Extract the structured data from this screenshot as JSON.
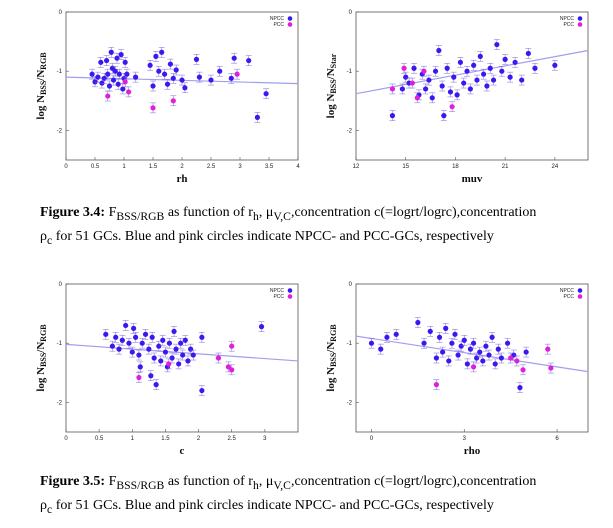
{
  "colors": {
    "npcc": "#3b18f0",
    "pcc": "#e01ee0",
    "fit": "#9f9ff0",
    "error": "#7a6bd6"
  },
  "legend": {
    "npcc": "NPCC",
    "pcc": "PCC"
  },
  "captions": [
    {
      "label": "Figure 3.4:",
      "line1": " F<sub>BSS/RGB</sub> as function of r<sub>h</sub>, μ<sub>V,C</sub>,concentration c(=logrt/logrc),concentration",
      "line2": "ρ<sub>c</sub> for 51 GCs. Blue and pink circles indicate NPCC- and PCC-GCs, respectively"
    },
    {
      "label": "Figure 3.5:",
      "line1": " F<sub>BSS/RGB</sub> as function of r<sub>h</sub>, μ<sub>V,C</sub>,concentration c(=logrt/logrc),concentration",
      "line2": "ρ<sub>c</sub> for 51 GCs. Blue and pink circles indicate NPCC- and PCC-GCs, respectively"
    }
  ],
  "chart_data": [
    {
      "type": "scatter",
      "xlabel": "rh",
      "ylabel": "log N<sub>BSS</sub>/N<sub>RGB</sub>",
      "xlim": [
        0,
        4
      ],
      "ylim": [
        -2.5,
        0
      ],
      "xticks": [
        "0",
        "0.5",
        "1",
        "1.5",
        "2",
        "2.5",
        "3",
        "3.5",
        "4"
      ],
      "xtickvals": [
        0,
        0.5,
        1,
        1.5,
        2,
        2.5,
        3,
        3.5,
        4
      ],
      "yticks": [
        "0",
        "-1",
        "-2"
      ],
      "ytickvals": [
        0,
        -1,
        -2
      ],
      "fit": [
        [
          0,
          -1.1
        ],
        [
          4,
          -1.21
        ]
      ],
      "npcc": [
        [
          0.45,
          -1.05
        ],
        [
          0.5,
          -1.18
        ],
        [
          0.55,
          -1.1
        ],
        [
          0.6,
          -0.85
        ],
        [
          0.62,
          -1.2
        ],
        [
          0.66,
          -1.12
        ],
        [
          0.7,
          -0.82
        ],
        [
          0.72,
          -1.05
        ],
        [
          0.75,
          -1.25
        ],
        [
          0.78,
          -0.68
        ],
        [
          0.8,
          -0.95
        ],
        [
          0.82,
          -1.15
        ],
        [
          0.85,
          -1.0
        ],
        [
          0.88,
          -0.78
        ],
        [
          0.9,
          -1.22
        ],
        [
          0.92,
          -1.05
        ],
        [
          0.95,
          -0.72
        ],
        [
          0.98,
          -1.3
        ],
        [
          1.0,
          -1.12
        ],
        [
          1.02,
          -0.85
        ],
        [
          1.05,
          -1.05
        ],
        [
          1.2,
          -1.1
        ],
        [
          1.45,
          -0.9
        ],
        [
          1.5,
          -1.25
        ],
        [
          1.55,
          -0.75
        ],
        [
          1.6,
          -1.0
        ],
        [
          1.65,
          -0.68
        ],
        [
          1.7,
          -1.05
        ],
        [
          1.75,
          -1.22
        ],
        [
          1.8,
          -0.88
        ],
        [
          1.85,
          -1.12
        ],
        [
          1.9,
          -0.98
        ],
        [
          2.0,
          -1.15
        ],
        [
          2.05,
          -1.28
        ],
        [
          2.25,
          -0.8
        ],
        [
          2.3,
          -1.1
        ],
        [
          2.5,
          -1.15
        ],
        [
          2.65,
          -1.0
        ],
        [
          2.85,
          -1.12
        ],
        [
          2.9,
          -0.78
        ],
        [
          3.15,
          -0.82
        ],
        [
          3.3,
          -1.78
        ],
        [
          3.45,
          -1.38
        ]
      ],
      "pcc": [
        [
          0.72,
          -1.42
        ],
        [
          1.02,
          -1.18
        ],
        [
          1.08,
          -1.35
        ],
        [
          1.5,
          -1.62
        ],
        [
          1.85,
          -1.5
        ],
        [
          2.95,
          -1.05
        ]
      ]
    },
    {
      "type": "scatter",
      "xlabel": "muv",
      "ylabel": "log N<sub>BSS</sub>/N<sub>Star</sub>",
      "xlim": [
        12,
        26
      ],
      "ylim": [
        -2.5,
        0
      ],
      "xticks": [
        "12",
        "15",
        "18",
        "21",
        "24"
      ],
      "xtickvals": [
        12,
        15,
        18,
        21,
        24
      ],
      "yticks": [
        "0",
        "-1",
        "-2"
      ],
      "ytickvals": [
        0,
        -1,
        -2
      ],
      "fit": [
        [
          12,
          -1.38
        ],
        [
          26,
          -0.65
        ]
      ],
      "npcc": [
        [
          14.2,
          -1.75
        ],
        [
          14.8,
          -1.3
        ],
        [
          15.0,
          -1.1
        ],
        [
          15.2,
          -1.2
        ],
        [
          15.5,
          -0.95
        ],
        [
          15.8,
          -1.4
        ],
        [
          16.0,
          -1.05
        ],
        [
          16.2,
          -1.3
        ],
        [
          16.4,
          -1.15
        ],
        [
          16.6,
          -1.45
        ],
        [
          16.8,
          -1.0
        ],
        [
          17.0,
          -0.65
        ],
        [
          17.2,
          -1.25
        ],
        [
          17.3,
          -1.75
        ],
        [
          17.5,
          -0.95
        ],
        [
          17.7,
          -1.35
        ],
        [
          17.9,
          -1.1
        ],
        [
          18.1,
          -1.4
        ],
        [
          18.3,
          -0.85
        ],
        [
          18.5,
          -1.2
        ],
        [
          18.7,
          -1.0
        ],
        [
          18.9,
          -1.3
        ],
        [
          19.1,
          -0.9
        ],
        [
          19.3,
          -1.15
        ],
        [
          19.5,
          -0.75
        ],
        [
          19.7,
          -1.05
        ],
        [
          19.9,
          -1.25
        ],
        [
          20.1,
          -0.95
        ],
        [
          20.3,
          -1.15
        ],
        [
          20.5,
          -0.55
        ],
        [
          20.8,
          -1.0
        ],
        [
          21.0,
          -0.8
        ],
        [
          21.3,
          -1.1
        ],
        [
          21.6,
          -0.85
        ],
        [
          22.0,
          -1.15
        ],
        [
          22.4,
          -0.7
        ],
        [
          22.8,
          -0.95
        ],
        [
          24.0,
          -0.9
        ]
      ],
      "pcc": [
        [
          14.2,
          -1.3
        ],
        [
          14.9,
          -0.95
        ],
        [
          15.4,
          -1.2
        ],
        [
          15.7,
          -1.45
        ],
        [
          16.1,
          -1.0
        ],
        [
          17.8,
          -1.6
        ]
      ]
    },
    {
      "type": "scatter",
      "xlabel": "c",
      "ylabel": "log N<sub>BSS</sub>/N<sub>RGB</sub>",
      "xlim": [
        0,
        3.5
      ],
      "ylim": [
        -2.5,
        0
      ],
      "xticks": [
        "0",
        "0.5",
        "1",
        "1.5",
        "2",
        "2.5",
        "3"
      ],
      "xtickvals": [
        0,
        0.5,
        1,
        1.5,
        2,
        2.5,
        3
      ],
      "yticks": [
        "0",
        "-1",
        "-2"
      ],
      "ytickvals": [
        0,
        -1,
        -2
      ],
      "fit": [
        [
          0,
          -1.02
        ],
        [
          3.5,
          -1.3
        ]
      ],
      "npcc": [
        [
          0.6,
          -0.85
        ],
        [
          0.7,
          -1.05
        ],
        [
          0.75,
          -0.9
        ],
        [
          0.8,
          -1.1
        ],
        [
          0.85,
          -0.95
        ],
        [
          0.9,
          -0.7
        ],
        [
          0.95,
          -1.0
        ],
        [
          1.0,
          -1.15
        ],
        [
          1.02,
          -0.75
        ],
        [
          1.05,
          -0.9
        ],
        [
          1.1,
          -1.2
        ],
        [
          1.12,
          -1.4
        ],
        [
          1.15,
          -1.0
        ],
        [
          1.2,
          -0.85
        ],
        [
          1.25,
          -1.1
        ],
        [
          1.28,
          -1.55
        ],
        [
          1.3,
          -0.9
        ],
        [
          1.33,
          -1.25
        ],
        [
          1.36,
          -1.7
        ],
        [
          1.4,
          -1.05
        ],
        [
          1.43,
          -1.3
        ],
        [
          1.46,
          -0.95
        ],
        [
          1.5,
          -1.15
        ],
        [
          1.53,
          -1.4
        ],
        [
          1.56,
          -1.0
        ],
        [
          1.6,
          -1.25
        ],
        [
          1.63,
          -0.8
        ],
        [
          1.66,
          -1.1
        ],
        [
          1.7,
          -1.35
        ],
        [
          1.73,
          -1.0
        ],
        [
          1.76,
          -1.2
        ],
        [
          1.8,
          -0.95
        ],
        [
          1.84,
          -1.3
        ],
        [
          1.88,
          -1.1
        ],
        [
          1.92,
          -1.2
        ],
        [
          2.05,
          -0.9
        ],
        [
          2.05,
          -1.8
        ],
        [
          2.95,
          -0.72
        ]
      ],
      "pcc": [
        [
          1.1,
          -1.58
        ],
        [
          1.55,
          -1.35
        ],
        [
          2.3,
          -1.25
        ],
        [
          2.45,
          -1.4
        ],
        [
          2.5,
          -1.05
        ],
        [
          2.5,
          -1.45
        ]
      ]
    },
    {
      "type": "scatter",
      "xlabel": "rho",
      "ylabel": "log N<sub>BSS</sub>/N<sub>RGB</sub>",
      "xlim": [
        -0.5,
        7
      ],
      "ylim": [
        -2.5,
        0
      ],
      "xticks": [
        "0",
        "3",
        "6"
      ],
      "xtickvals": [
        0,
        3,
        6
      ],
      "yticks": [
        "0",
        "-1",
        "-2"
      ],
      "ytickvals": [
        0,
        -1,
        -2
      ],
      "fit": [
        [
          -0.5,
          -0.88
        ],
        [
          7,
          -1.48
        ]
      ],
      "npcc": [
        [
          0.0,
          -1.0
        ],
        [
          0.3,
          -1.1
        ],
        [
          0.5,
          -0.9
        ],
        [
          0.8,
          -0.85
        ],
        [
          1.5,
          -0.65
        ],
        [
          1.7,
          -1.0
        ],
        [
          1.9,
          -0.8
        ],
        [
          2.1,
          -1.25
        ],
        [
          2.2,
          -0.9
        ],
        [
          2.3,
          -1.15
        ],
        [
          2.4,
          -0.75
        ],
        [
          2.5,
          -1.3
        ],
        [
          2.6,
          -1.0
        ],
        [
          2.7,
          -0.85
        ],
        [
          2.8,
          -1.2
        ],
        [
          2.9,
          -1.05
        ],
        [
          3.0,
          -0.95
        ],
        [
          3.1,
          -1.35
        ],
        [
          3.2,
          -1.1
        ],
        [
          3.3,
          -1.0
        ],
        [
          3.4,
          -1.25
        ],
        [
          3.5,
          -1.15
        ],
        [
          3.6,
          -1.3
        ],
        [
          3.7,
          -1.05
        ],
        [
          3.8,
          -1.2
        ],
        [
          3.9,
          -0.9
        ],
        [
          4.0,
          -1.35
        ],
        [
          4.1,
          -1.1
        ],
        [
          4.2,
          -1.25
        ],
        [
          4.4,
          -1.0
        ],
        [
          4.6,
          -1.2
        ],
        [
          4.8,
          -1.75
        ],
        [
          5.0,
          -1.15
        ]
      ],
      "pcc": [
        [
          2.1,
          -1.7
        ],
        [
          3.3,
          -1.4
        ],
        [
          4.5,
          -1.25
        ],
        [
          4.7,
          -1.3
        ],
        [
          4.9,
          -1.45
        ],
        [
          5.7,
          -1.1
        ],
        [
          5.8,
          -1.42
        ]
      ]
    }
  ]
}
